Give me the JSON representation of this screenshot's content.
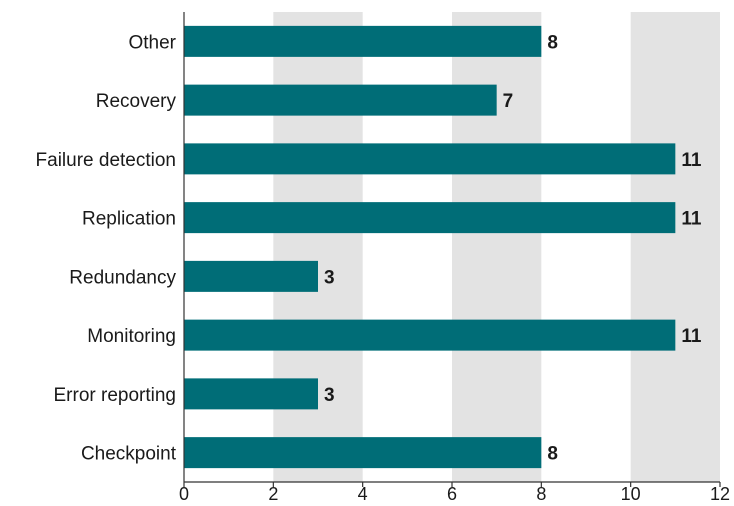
{
  "chart_data": {
    "type": "bar",
    "orientation": "horizontal",
    "categories": [
      "Other",
      "Recovery",
      "Failure detection",
      "Replication",
      "Redundancy",
      "Monitoring",
      "Error reporting",
      "Checkpoint"
    ],
    "values": [
      8,
      7,
      11,
      11,
      3,
      11,
      3,
      8
    ],
    "xlim": [
      0,
      12
    ],
    "xticks": [
      0,
      2,
      4,
      6,
      8,
      10,
      12
    ],
    "title": "",
    "xlabel": "",
    "ylabel": "",
    "grid": "alternating shaded vertical bands",
    "colors": {
      "bar": "#006d77",
      "band": "#e3e3e3",
      "axis": "#333333",
      "text": "#1a1a1a"
    }
  }
}
